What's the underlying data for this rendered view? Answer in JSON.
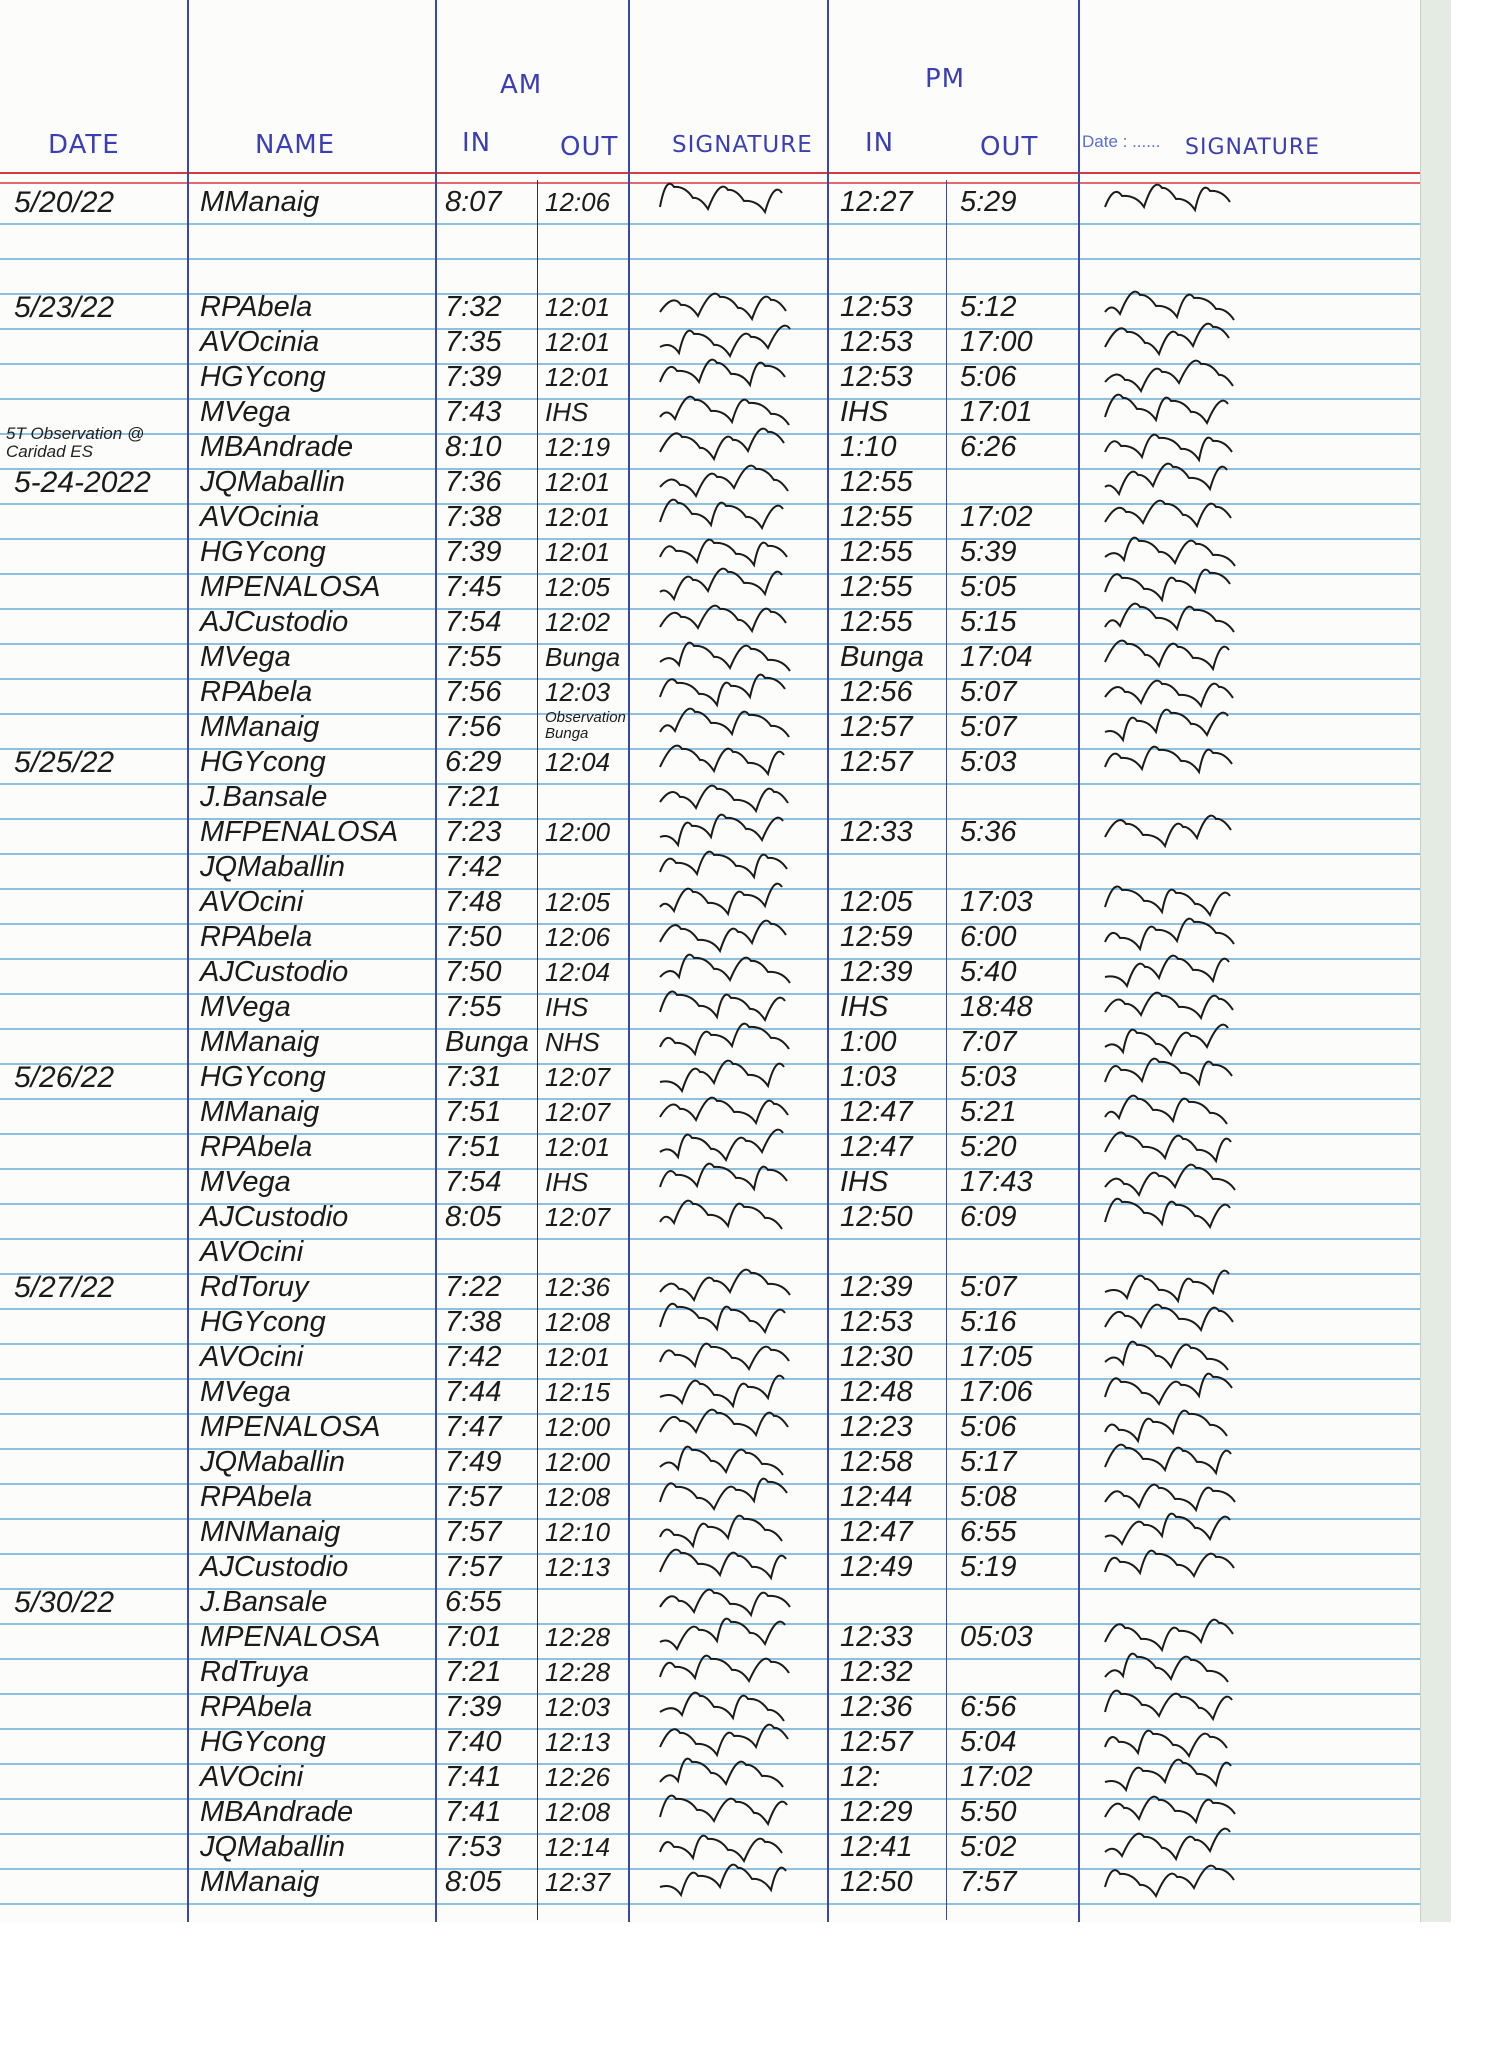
{
  "header": {
    "am_label": "AM",
    "pm_label": "PM",
    "columns": {
      "date": "DATE",
      "name": "NAME",
      "am_in": "IN",
      "am_out": "OUT",
      "am_signature": "SIGNATURE",
      "pm_in": "IN",
      "pm_out": "OUT",
      "pm_signature": "SIGNATURE"
    },
    "printed_date_label": "Date : ......"
  },
  "notes": [
    {
      "text": "5T Observation @ Caridad ES",
      "date": "5-24-2022"
    }
  ],
  "colors": {
    "ink": "#1b1b1b",
    "header_ink": "#3b3fb3",
    "rule": "#8fc0df",
    "margin_red": "#d93a40",
    "column_line": "#3a48a8"
  },
  "entries": [
    {
      "date": "5/20/22",
      "name": "MManaig",
      "am_in": "8:07",
      "am_out": "12:06",
      "pm_in": "12:27",
      "pm_out": "5:29"
    },
    {
      "date": "5/23/22",
      "name": "RPAbela",
      "am_in": "7:32",
      "am_out": "12:01",
      "pm_in": "12:53",
      "pm_out": "5:12"
    },
    {
      "date": "",
      "name": "AVOcinia",
      "am_in": "7:35",
      "am_out": "12:01",
      "pm_in": "12:53",
      "pm_out": "17:00"
    },
    {
      "date": "",
      "name": "HGYcong",
      "am_in": "7:39",
      "am_out": "12:01",
      "pm_in": "12:53",
      "pm_out": "5:06"
    },
    {
      "date": "",
      "name": "MVega",
      "am_in": "7:43",
      "am_out": "IHS",
      "pm_in": "IHS",
      "pm_out": "17:01"
    },
    {
      "date": "",
      "name": "MBAndrade",
      "am_in": "8:10",
      "am_out": "12:19",
      "pm_in": "1:10",
      "pm_out": "6:26"
    },
    {
      "date": "5-24-2022",
      "name": "JQMaballin",
      "am_in": "7:36",
      "am_out": "12:01",
      "pm_in": "12:55",
      "pm_out": ""
    },
    {
      "date": "",
      "name": "AVOcinia",
      "am_in": "7:38",
      "am_out": "12:01",
      "pm_in": "12:55",
      "pm_out": "17:02"
    },
    {
      "date": "",
      "name": "HGYcong",
      "am_in": "7:39",
      "am_out": "12:01",
      "pm_in": "12:55",
      "pm_out": "5:39"
    },
    {
      "date": "",
      "name": "MPENALOSA",
      "am_in": "7:45",
      "am_out": "12:05",
      "pm_in": "12:55",
      "pm_out": "5:05"
    },
    {
      "date": "",
      "name": "AJCustodio",
      "am_in": "7:54",
      "am_out": "12:02",
      "pm_in": "12:55",
      "pm_out": "5:15"
    },
    {
      "date": "",
      "name": "MVega",
      "am_in": "7:55",
      "am_out": "Bunga",
      "pm_in": "Bunga",
      "pm_out": "17:04"
    },
    {
      "date": "",
      "name": "RPAbela",
      "am_in": "7:56",
      "am_out": "12:03",
      "pm_in": "12:56",
      "pm_out": "5:07"
    },
    {
      "date": "",
      "name": "MManaig",
      "am_in": "7:56",
      "am_out": "Observation Bunga",
      "pm_in": "12:57",
      "pm_out": "5:07"
    },
    {
      "date": "5/25/22",
      "name": "HGYcong",
      "am_in": "6:29",
      "am_out": "12:04",
      "pm_in": "12:57",
      "pm_out": "5:03"
    },
    {
      "date": "",
      "name": "J.Bansale",
      "am_in": "7:21",
      "am_out": "",
      "pm_in": "",
      "pm_out": ""
    },
    {
      "date": "",
      "name": "MFPENALOSA",
      "am_in": "7:23",
      "am_out": "12:00",
      "pm_in": "12:33",
      "pm_out": "5:36"
    },
    {
      "date": "",
      "name": "JQMaballin",
      "am_in": "7:42",
      "am_out": "",
      "pm_in": "",
      "pm_out": ""
    },
    {
      "date": "",
      "name": "AVOcini",
      "am_in": "7:48",
      "am_out": "12:05",
      "pm_in": "12:05",
      "pm_out": "17:03"
    },
    {
      "date": "",
      "name": "RPAbela",
      "am_in": "7:50",
      "am_out": "12:06",
      "pm_in": "12:59",
      "pm_out": "6:00"
    },
    {
      "date": "",
      "name": "AJCustodio",
      "am_in": "7:50",
      "am_out": "12:04",
      "pm_in": "12:39",
      "pm_out": "5:40"
    },
    {
      "date": "",
      "name": "MVega",
      "am_in": "7:55",
      "am_out": "IHS",
      "pm_in": "IHS",
      "pm_out": "18:48"
    },
    {
      "date": "",
      "name": "MManaig",
      "am_in": "Bunga",
      "am_out": "NHS",
      "pm_in": "1:00",
      "pm_out": "7:07"
    },
    {
      "date": "5/26/22",
      "name": "HGYcong",
      "am_in": "7:31",
      "am_out": "12:07",
      "pm_in": "1:03",
      "pm_out": "5:03"
    },
    {
      "date": "",
      "name": "MManaig",
      "am_in": "7:51",
      "am_out": "12:07",
      "pm_in": "12:47",
      "pm_out": "5:21"
    },
    {
      "date": "",
      "name": "RPAbela",
      "am_in": "7:51",
      "am_out": "12:01",
      "pm_in": "12:47",
      "pm_out": "5:20"
    },
    {
      "date": "",
      "name": "MVega",
      "am_in": "7:54",
      "am_out": "IHS",
      "pm_in": "IHS",
      "pm_out": "17:43"
    },
    {
      "date": "",
      "name": "AJCustodio",
      "am_in": "8:05",
      "am_out": "12:07",
      "pm_in": "12:50",
      "pm_out": "6:09"
    },
    {
      "date": "",
      "name": "AVOcini",
      "am_in": "",
      "am_out": "",
      "pm_in": "",
      "pm_out": ""
    },
    {
      "date": "5/27/22",
      "name": "RdToruy",
      "am_in": "7:22",
      "am_out": "12:36",
      "pm_in": "12:39",
      "pm_out": "5:07"
    },
    {
      "date": "",
      "name": "HGYcong",
      "am_in": "7:38",
      "am_out": "12:08",
      "pm_in": "12:53",
      "pm_out": "5:16"
    },
    {
      "date": "",
      "name": "AVOcini",
      "am_in": "7:42",
      "am_out": "12:01",
      "pm_in": "12:30",
      "pm_out": "17:05"
    },
    {
      "date": "",
      "name": "MVega",
      "am_in": "7:44",
      "am_out": "12:15",
      "pm_in": "12:48",
      "pm_out": "17:06"
    },
    {
      "date": "",
      "name": "MPENALOSA",
      "am_in": "7:47",
      "am_out": "12:00",
      "pm_in": "12:23",
      "pm_out": "5:06"
    },
    {
      "date": "",
      "name": "JQMaballin",
      "am_in": "7:49",
      "am_out": "12:00",
      "pm_in": "12:58",
      "pm_out": "5:17"
    },
    {
      "date": "",
      "name": "RPAbela",
      "am_in": "7:57",
      "am_out": "12:08",
      "pm_in": "12:44",
      "pm_out": "5:08"
    },
    {
      "date": "",
      "name": "MNManaig",
      "am_in": "7:57",
      "am_out": "12:10",
      "pm_in": "12:47",
      "pm_out": "6:55"
    },
    {
      "date": "",
      "name": "AJCustodio",
      "am_in": "7:57",
      "am_out": "12:13",
      "pm_in": "12:49",
      "pm_out": "5:19"
    },
    {
      "date": "5/30/22",
      "name": "J.Bansale",
      "am_in": "6:55",
      "am_out": "",
      "pm_in": "",
      "pm_out": ""
    },
    {
      "date": "",
      "name": "MPENALOSA",
      "am_in": "7:01",
      "am_out": "12:28",
      "pm_in": "12:33",
      "pm_out": "05:03"
    },
    {
      "date": "",
      "name": "RdTruya",
      "am_in": "7:21",
      "am_out": "12:28",
      "pm_in": "12:32",
      "pm_out": ""
    },
    {
      "date": "",
      "name": "RPAbela",
      "am_in": "7:39",
      "am_out": "12:03",
      "pm_in": "12:36",
      "pm_out": "6:56"
    },
    {
      "date": "",
      "name": "HGYcong",
      "am_in": "7:40",
      "am_out": "12:13",
      "pm_in": "12:57",
      "pm_out": "5:04"
    },
    {
      "date": "",
      "name": "AVOcini",
      "am_in": "7:41",
      "am_out": "12:26",
      "pm_in": "12:",
      "pm_out": "17:02"
    },
    {
      "date": "",
      "name": "MBAndrade",
      "am_in": "7:41",
      "am_out": "12:08",
      "pm_in": "12:29",
      "pm_out": "5:50"
    },
    {
      "date": "",
      "name": "JQMaballin",
      "am_in": "7:53",
      "am_out": "12:14",
      "pm_in": "12:41",
      "pm_out": "5:02"
    },
    {
      "date": "",
      "name": "MManaig",
      "am_in": "8:05",
      "am_out": "12:37",
      "pm_in": "12:50",
      "pm_out": "7:57"
    }
  ]
}
